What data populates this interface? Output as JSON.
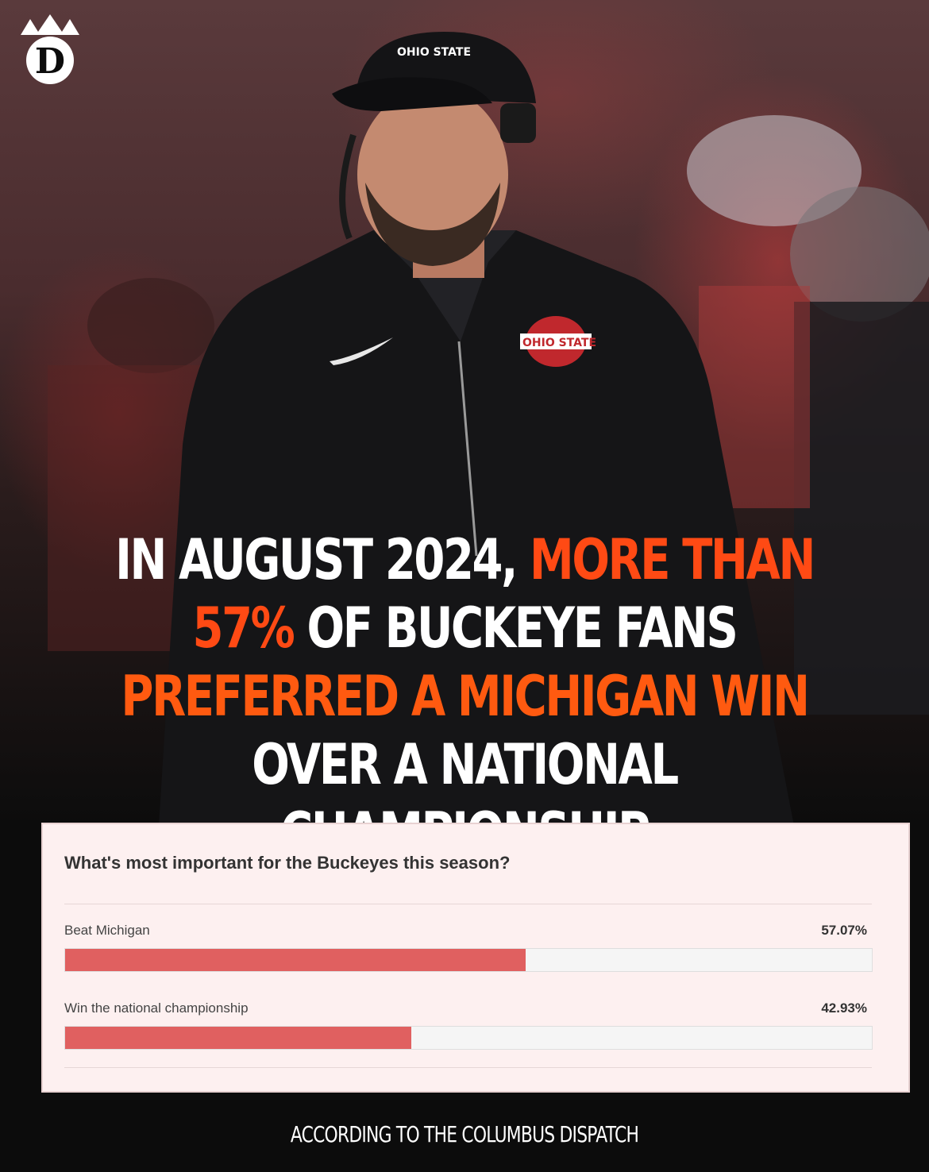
{
  "colors": {
    "accent": "#ff4a14",
    "bar": "#e06060",
    "poll_bg": "#fdf0f0"
  },
  "logo": {
    "icon": "crown-d-logo"
  },
  "photo": {
    "icon": "coach-photo",
    "cap_text": "OHIO STATE",
    "jacket_logo": "OHIO STATE"
  },
  "headline": {
    "line1_white": "IN AUGUST 2024,",
    "line1_orange": "MORE THAN",
    "line2_orange": "57%",
    "line2_white": "OF BUCKEYE FANS",
    "line3_orange": "PREFERRED A MICHIGAN WIN",
    "line4_white": "OVER A NATIONAL CHAMPIONSHIP"
  },
  "poll": {
    "question": "What's most important for the Buckeyes this season?",
    "options": [
      {
        "label": "Beat Michigan",
        "percent_text": "57.07%",
        "value": 57.07
      },
      {
        "label": "Win the national championship",
        "percent_text": "42.93%",
        "value": 42.93
      }
    ]
  },
  "footer": {
    "source": "ACCORDING TO THE COLUMBUS DISPATCH"
  }
}
